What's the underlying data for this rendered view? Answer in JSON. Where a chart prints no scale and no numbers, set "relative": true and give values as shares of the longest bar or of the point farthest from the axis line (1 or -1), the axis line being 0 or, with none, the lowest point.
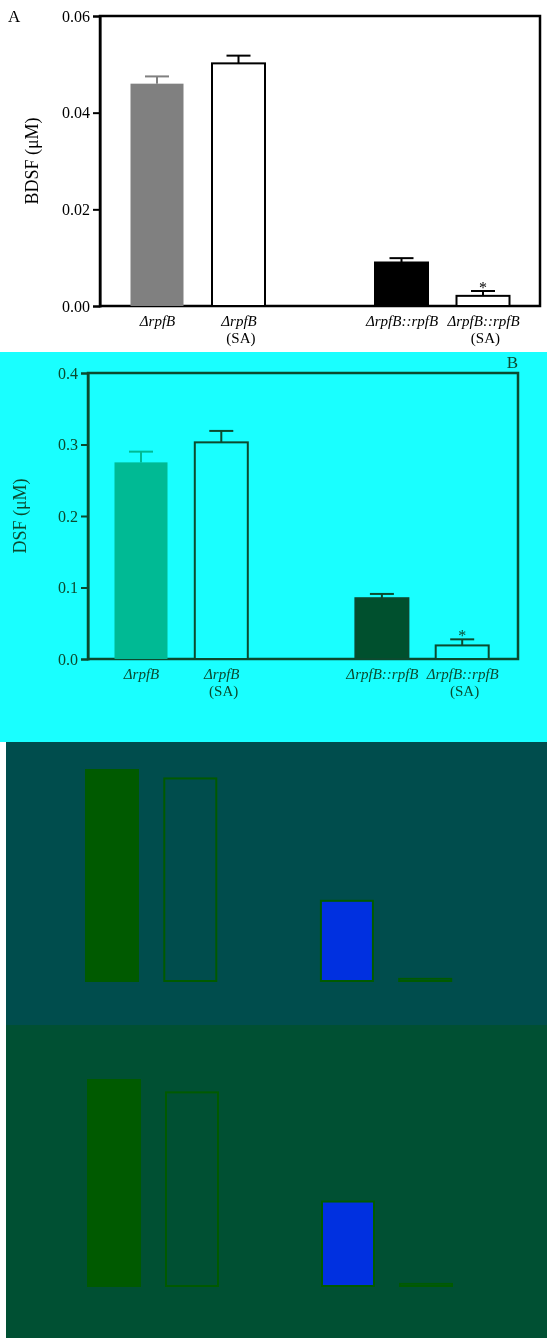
{
  "chart_data": [
    {
      "type": "bar",
      "title": "A",
      "ylabel": "BDSF (μM)",
      "categories": [
        "ΔrpfB",
        "ΔrpfB (SA)",
        null,
        "ΔrpfB::rpfB",
        "ΔrpfB::rpfB (SA)"
      ],
      "values": [
        0.046,
        0.0502,
        null,
        0.009,
        0.0021
      ],
      "colors": [
        "#808080",
        "#ffffff",
        null,
        "#000000",
        "#ffffff"
      ],
      "errors": [
        [
          0.046,
          0.0475
        ],
        [
          0.0502,
          0.0518
        ],
        null,
        [
          0.009,
          0.0099
        ],
        [
          0.0021,
          0.0031
        ]
      ],
      "ylim": [
        0,
        0.06
      ],
      "yticks": [
        {
          "value": 0,
          "label": "0.00"
        },
        0.02,
        0.04,
        0.06
      ],
      "annotations": [
        {
          "text": "*",
          "x": "ΔrpfB::rpfB (SA)",
          "y": 0.0031
        }
      ]
    },
    {
      "type": "bar",
      "title": "B",
      "ylabel": "DSF (μM)",
      "categories": [
        "ΔrpfB",
        "ΔrpfB (SA)",
        null,
        "ΔrpfB::rpfB",
        "ΔrpfB::rpfB (SA)"
      ],
      "values": [
        0.275,
        0.303,
        null,
        0.085,
        0.019
      ],
      "colors": [
        "#00ba94",
        "#19ffff",
        null,
        "#00502e",
        "#19ffff"
      ],
      "errors": [
        [
          0.275,
          0.29
        ],
        [
          0.303,
          0.319
        ],
        null,
        [
          0.085,
          0.091
        ],
        [
          0.019,
          0.0275
        ]
      ],
      "ylim": [
        0,
        0.4
      ],
      "yticks": [
        {
          "value": 0,
          "label": "0.0"
        },
        0.1,
        0.2,
        0.3,
        0.4
      ],
      "annotations": [
        {
          "text": "*",
          "x": "ΔrpfB::rpfB (SA)",
          "y": 0.0275
        }
      ]
    },
    {
      "type": "bar",
      "relative": true,
      "categories": [
        null,
        null,
        null,
        null,
        null
      ],
      "values": [
        1,
        0.96,
        null,
        0.38,
        0.01
      ],
      "colors": [
        "#005a00",
        "#004d4d",
        null,
        "#0030e0",
        "#0030e0"
      ]
    },
    {
      "type": "bar",
      "relative": true,
      "categories": [
        null,
        null,
        null,
        null,
        null
      ],
      "values": [
        1,
        0.94,
        null,
        0.41,
        0.01
      ],
      "colors": [
        "#005a00",
        "#005033",
        null,
        "#0030e0",
        "#0030e0"
      ]
    }
  ]
}
